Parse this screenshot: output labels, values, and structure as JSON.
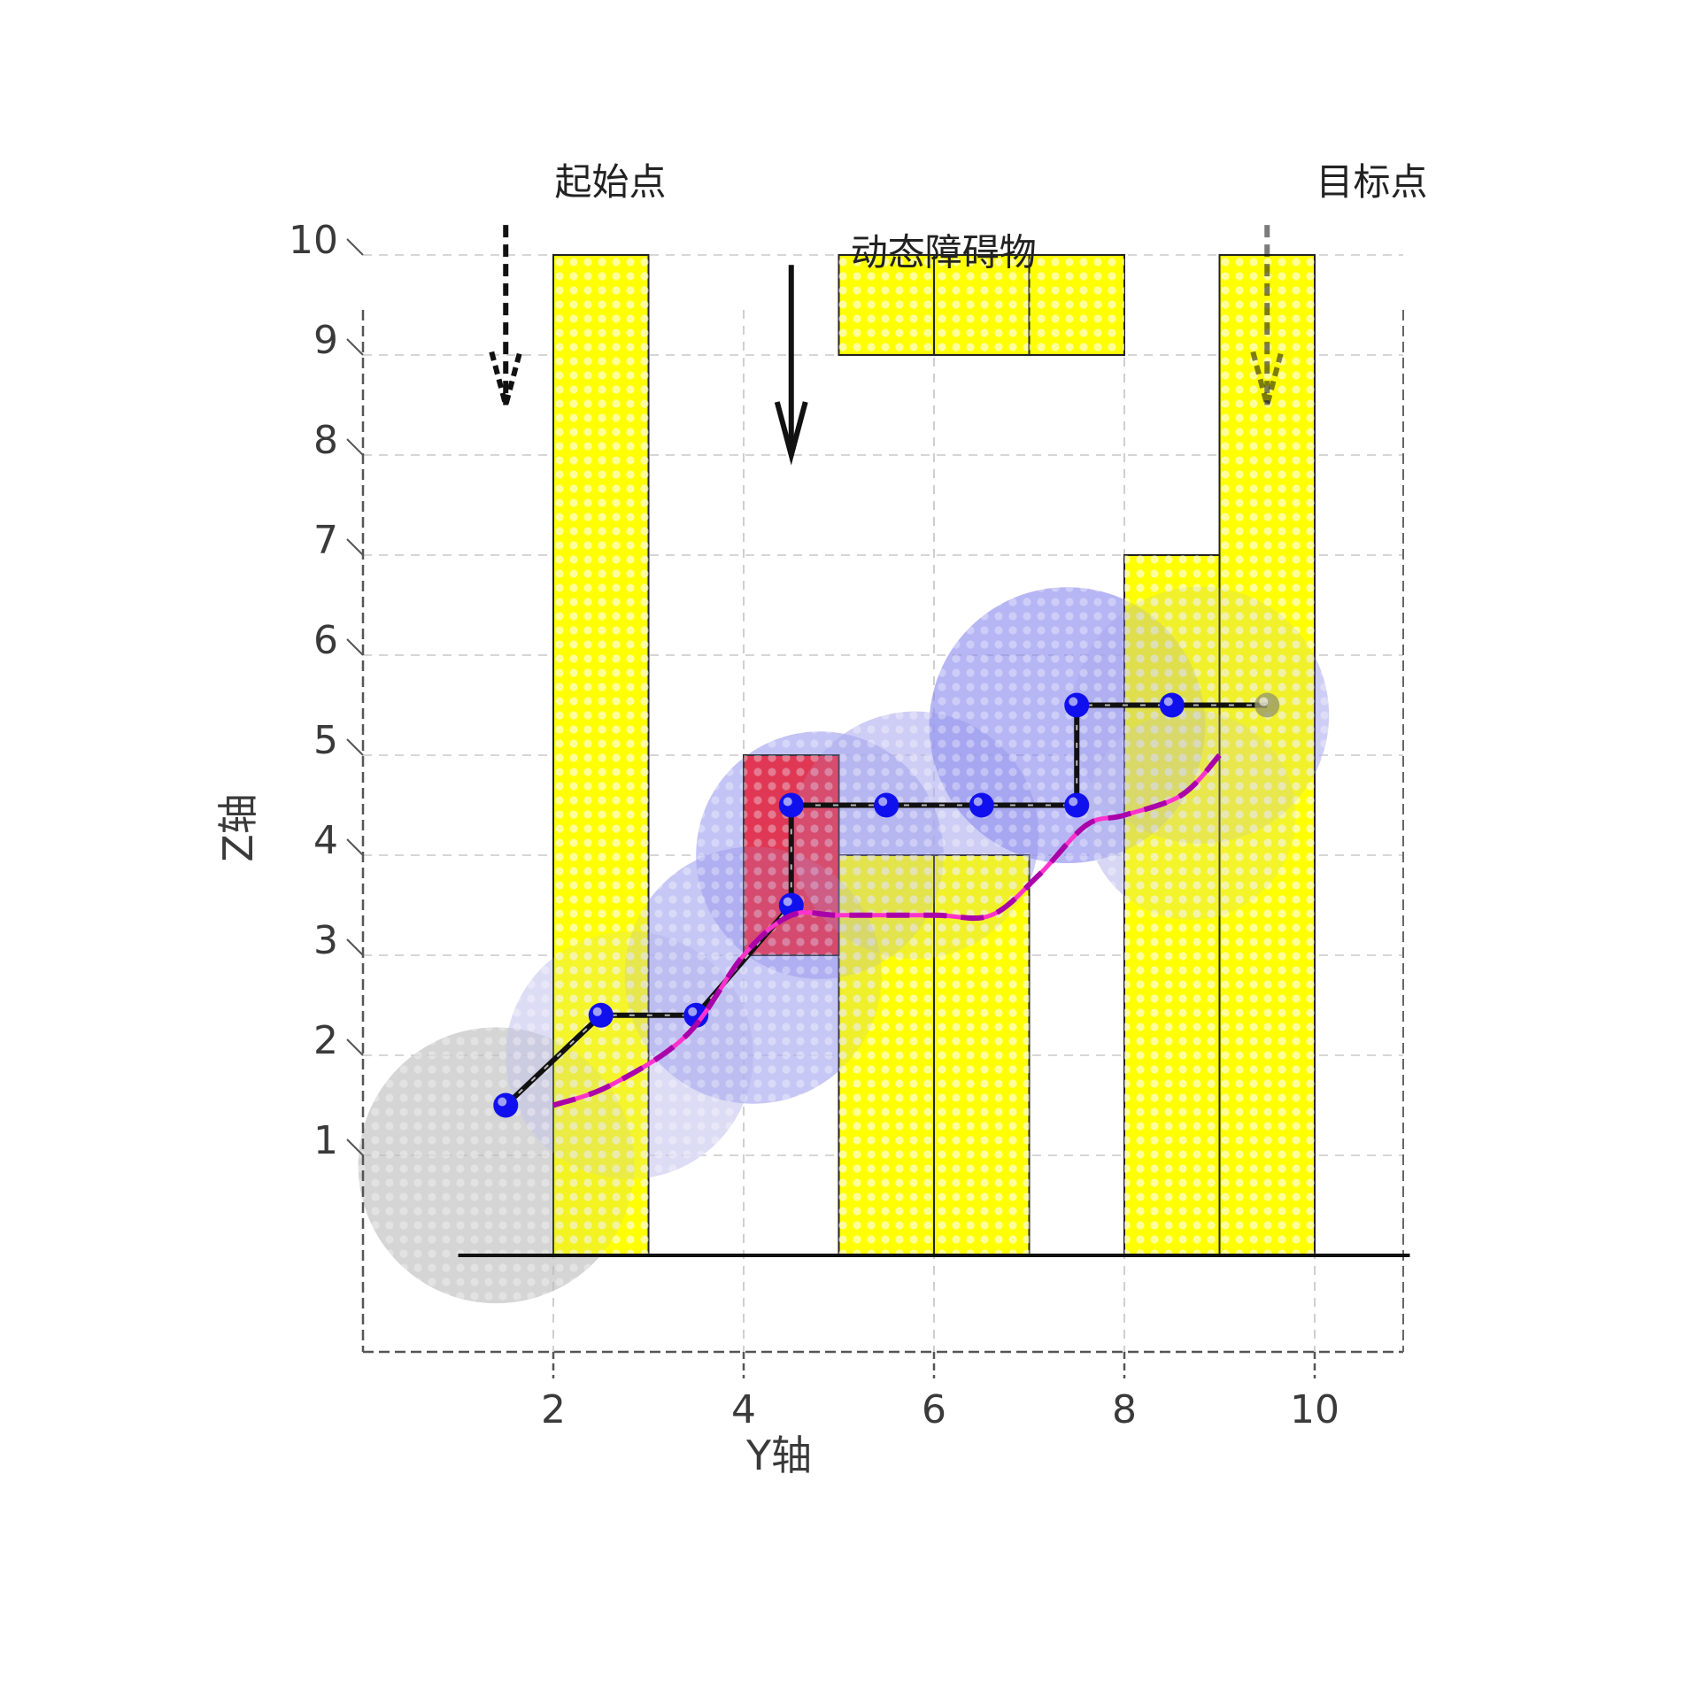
{
  "chart_data": {
    "type": "scatter",
    "xlabel": "Y轴",
    "ylabel": "Z轴",
    "xlim": [
      0,
      11
    ],
    "ylim": [
      -1,
      10.5
    ],
    "x_ticks": [
      2,
      4,
      6,
      8,
      10
    ],
    "y_ticks": [
      1,
      2,
      3,
      4,
      5,
      6,
      7,
      8,
      9,
      10
    ],
    "grid": true,
    "annotations": [
      {
        "text": "起始点",
        "x": 2.6,
        "y": 10.6
      },
      {
        "text": "目标点",
        "x": 10.6,
        "y": 10.6
      },
      {
        "text": "动态障碍物",
        "x": 6.1,
        "y": 9.9
      }
    ],
    "ground_line": {
      "x_start": 1,
      "x_end": 11,
      "y": 0
    },
    "static_obstacles": [
      {
        "x0": 2,
        "x1": 3,
        "y0": 0,
        "y1": 10
      },
      {
        "x0": 5,
        "x1": 6,
        "y0": 0,
        "y1": 4
      },
      {
        "x0": 6,
        "x1": 7,
        "y0": 0,
        "y1": 4
      },
      {
        "x0": 8,
        "x1": 9,
        "y0": 0,
        "y1": 7
      },
      {
        "x0": 9,
        "x1": 10,
        "y0": 0,
        "y1": 10
      },
      {
        "x0": 5,
        "x1": 6,
        "y0": 9,
        "y1": 10
      },
      {
        "x0": 6,
        "x1": 7,
        "y0": 9,
        "y1": 10
      },
      {
        "x0": 7,
        "x1": 8,
        "y0": 9,
        "y1": 10
      }
    ],
    "dynamic_obstacle": {
      "x0": 4,
      "x1": 5,
      "y0": 3,
      "y1": 5
    },
    "arrows": [
      {
        "x": 1.5,
        "y_from": 10.3,
        "y_to": 8.5,
        "style": "dashed"
      },
      {
        "x": 4.5,
        "y_from": 9.9,
        "y_to": 8.0,
        "style": "solid"
      },
      {
        "x": 9.5,
        "y_from": 10.3,
        "y_to": 8.5,
        "style": "dashed-faded"
      }
    ],
    "safety_zones": [
      {
        "cx": 1.4,
        "cy": 0.9,
        "r": 1.45,
        "color": "#bdbdbd"
      },
      {
        "cx": 2.8,
        "cy": 2.0,
        "r": 1.3,
        "color": "#c8c8f0"
      },
      {
        "cx": 4.1,
        "cy": 2.8,
        "r": 1.35,
        "color": "#a8a8f0"
      },
      {
        "cx": 4.8,
        "cy": 4.0,
        "r": 1.3,
        "color": "#a0a0f0"
      },
      {
        "cx": 5.8,
        "cy": 4.2,
        "r": 1.3,
        "color": "#b0b0f0"
      },
      {
        "cx": 7.4,
        "cy": 5.3,
        "r": 1.45,
        "color": "#8c8cf0"
      },
      {
        "cx": 8.8,
        "cy": 5.4,
        "r": 1.35,
        "color": "#b0b0f0"
      },
      {
        "cx": 8.7,
        "cy": 4.4,
        "r": 1.1,
        "color": "#c0c0f0"
      }
    ],
    "series": [
      {
        "style": "black-line-blue-markers",
        "points": [
          [
            1.5,
            1.5
          ],
          [
            2.5,
            2.4
          ],
          [
            3.5,
            2.4
          ],
          [
            4.5,
            3.5
          ],
          [
            4.5,
            4.5
          ],
          [
            5.5,
            4.5
          ],
          [
            6.5,
            4.5
          ],
          [
            7.5,
            4.5
          ],
          [
            7.5,
            5.5
          ],
          [
            8.5,
            5.5
          ],
          [
            9.5,
            5.5
          ]
        ]
      },
      {
        "style": "magenta-dashed",
        "points": [
          [
            2.0,
            1.5
          ],
          [
            2.6,
            1.7
          ],
          [
            3.4,
            2.2
          ],
          [
            4.0,
            3.0
          ],
          [
            4.5,
            3.4
          ],
          [
            5.0,
            3.4
          ],
          [
            6.0,
            3.4
          ],
          [
            6.6,
            3.4
          ],
          [
            7.1,
            3.8
          ],
          [
            7.6,
            4.3
          ],
          [
            8.0,
            4.4
          ],
          [
            8.6,
            4.6
          ],
          [
            9.0,
            5.0
          ]
        ]
      }
    ]
  }
}
